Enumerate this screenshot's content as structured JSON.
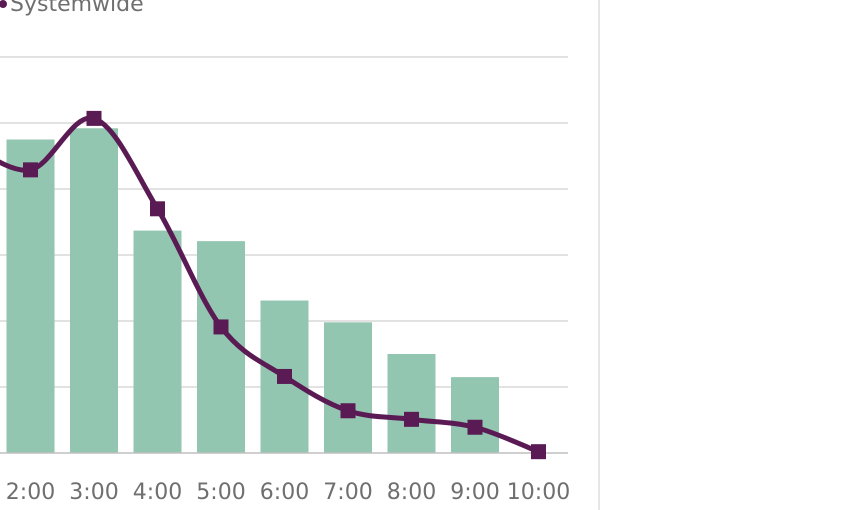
{
  "chart_data": {
    "type": "bar",
    "categories": [
      "",
      "2:00",
      "3:00",
      "4:00",
      "5:00",
      "6:00",
      "7:00",
      "8:00",
      "9:00",
      "10:00"
    ],
    "ylim": [
      0,
      6
    ],
    "grid": true,
    "legend": {
      "position": "top-left",
      "series_label": "Systemwide"
    },
    "series": [
      {
        "kind": "bar",
        "values": [
          null,
          4.75,
          4.92,
          3.37,
          3.21,
          2.31,
          1.98,
          1.5,
          1.15,
          null
        ],
        "color": "#93c6b0"
      },
      {
        "name": "Systemwide",
        "kind": "line",
        "values": [
          4.7,
          4.29,
          5.07,
          3.7,
          1.91,
          1.16,
          0.64,
          0.51,
          0.39,
          0.02
        ],
        "color": "#5a1a54"
      }
    ],
    "colors": {
      "grid": "#d9d9d9",
      "axis": "#bfbfbf",
      "tick_text": "#6f6f6f"
    }
  }
}
